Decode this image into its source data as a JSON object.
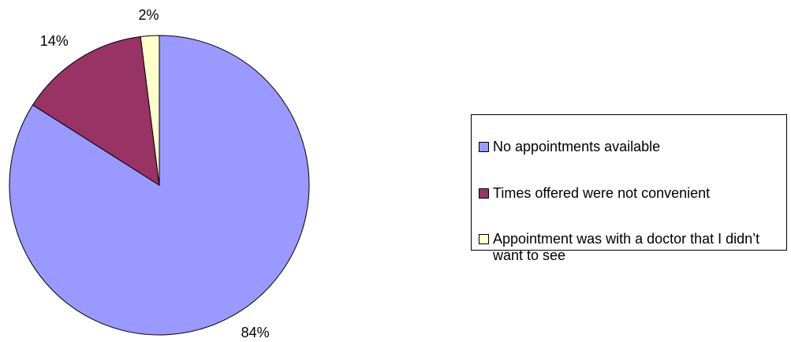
{
  "chart_data": {
    "type": "pie",
    "categories": [
      "No appointments available",
      "Times offered were not convenient",
      "Appointment was with a doctor that I didn’t want to see"
    ],
    "values": [
      84,
      14,
      2
    ],
    "value_labels": [
      "84%",
      "14%",
      "2%"
    ],
    "colors": [
      "#9999ff",
      "#993366",
      "#ffffcc"
    ],
    "legend": "right"
  }
}
